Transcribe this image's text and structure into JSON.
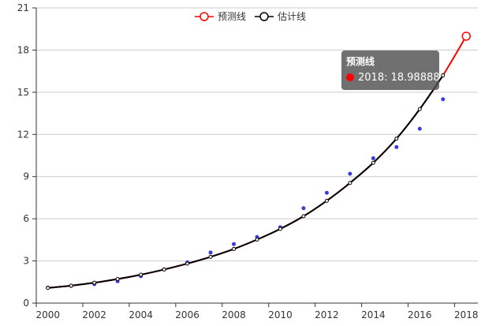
{
  "chart_data": {
    "type": "line",
    "x": [
      "2000",
      "2001",
      "2002",
      "2003",
      "2004",
      "2005",
      "2006",
      "2007",
      "2008",
      "2009",
      "2010",
      "2011",
      "2012",
      "2013",
      "2014",
      "2015",
      "2016",
      "2017",
      "2018"
    ],
    "x_tick_labels": [
      "2000",
      "2002",
      "2004",
      "2006",
      "2008",
      "2010",
      "2012",
      "2014",
      "2016",
      "2018"
    ],
    "ylim": [
      0,
      21
    ],
    "y_ticks": [
      "0",
      "3",
      "6",
      "9",
      "12",
      "15",
      "18",
      "21"
    ],
    "legend_position": "top-center",
    "grid": "horizontal",
    "series": [
      {
        "name": "预测线",
        "color": "#ff0000",
        "values": [
          1.08,
          1.24,
          1.45,
          1.71,
          2.02,
          2.39,
          2.81,
          3.29,
          3.85,
          4.52,
          5.28,
          6.18,
          7.28,
          8.55,
          9.98,
          11.7,
          13.8,
          16.2,
          18.98888
        ]
      },
      {
        "name": "估计线",
        "color": "#000000",
        "values": [
          1.08,
          1.24,
          1.45,
          1.71,
          2.02,
          2.39,
          2.81,
          3.29,
          3.85,
          4.52,
          5.28,
          6.18,
          7.28,
          8.55,
          9.98,
          11.7,
          13.8,
          16.2,
          null
        ]
      },
      {
        "name": "",
        "type": "scatter",
        "color": "#3b3bdc",
        "values": [
          1.1,
          1.22,
          1.35,
          1.55,
          1.92,
          2.4,
          2.9,
          3.6,
          4.2,
          4.7,
          5.4,
          6.75,
          7.85,
          9.2,
          10.3,
          11.1,
          12.4,
          14.5,
          null
        ]
      }
    ],
    "tooltip": {
      "title": "预测线",
      "text": "2018: 18.98888"
    }
  }
}
